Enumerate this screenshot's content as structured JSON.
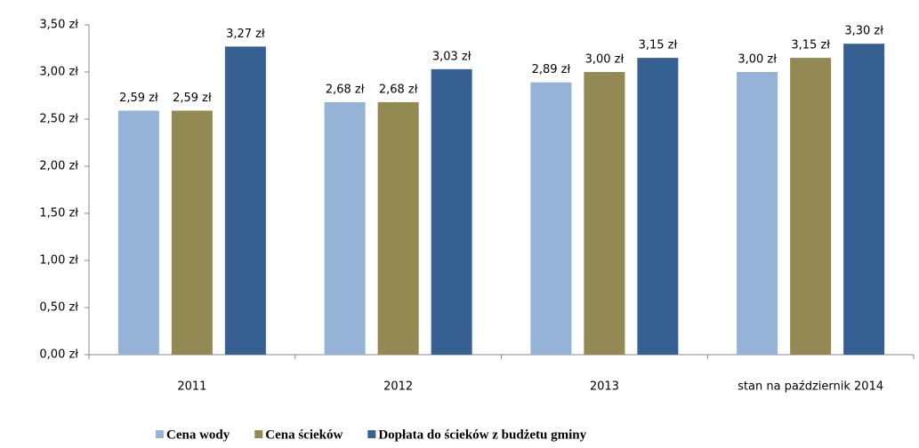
{
  "chart_data": {
    "type": "bar",
    "categories": [
      "2011",
      "2012",
      "2013",
      "stan na październik 2014"
    ],
    "series": [
      {
        "name": "Cena wody",
        "color": "#95b3d7",
        "values": [
          2.59,
          2.68,
          2.89,
          3.0
        ],
        "value_labels": [
          "2,59 zł",
          "2,68 zł",
          "2,89 zł",
          "3,00 zł"
        ]
      },
      {
        "name": "Cena ścieków",
        "color": "#938953",
        "values": [
          2.59,
          2.68,
          3.0,
          3.15
        ],
        "value_labels": [
          "2,59 zł",
          "2,68 zł",
          "3,00 zł",
          "3,15 zł"
        ]
      },
      {
        "name": "Dopłata do ścieków z budżetu gminy",
        "color": "#376092",
        "values": [
          3.27,
          3.03,
          3.15,
          3.3
        ],
        "value_labels": [
          "3,27 zł",
          "3,03 zł",
          "3,15 zł",
          "3,30 zł"
        ]
      }
    ],
    "ylim": [
      0,
      3.5
    ],
    "yticks": [
      {
        "value": 0,
        "label": "0,00 zł"
      },
      {
        "value": 0.5,
        "label": "0,50 zł"
      },
      {
        "value": 1,
        "label": "1,00 zł"
      },
      {
        "value": 1.5,
        "label": "1,50 zł"
      },
      {
        "value": 2,
        "label": "2,00 zł"
      },
      {
        "value": 2.5,
        "label": "2,50 zł"
      },
      {
        "value": 3,
        "label": "3,00 zł"
      },
      {
        "value": 3.5,
        "label": "3,50 zł"
      }
    ],
    "grid": false,
    "legend": "bottom"
  }
}
